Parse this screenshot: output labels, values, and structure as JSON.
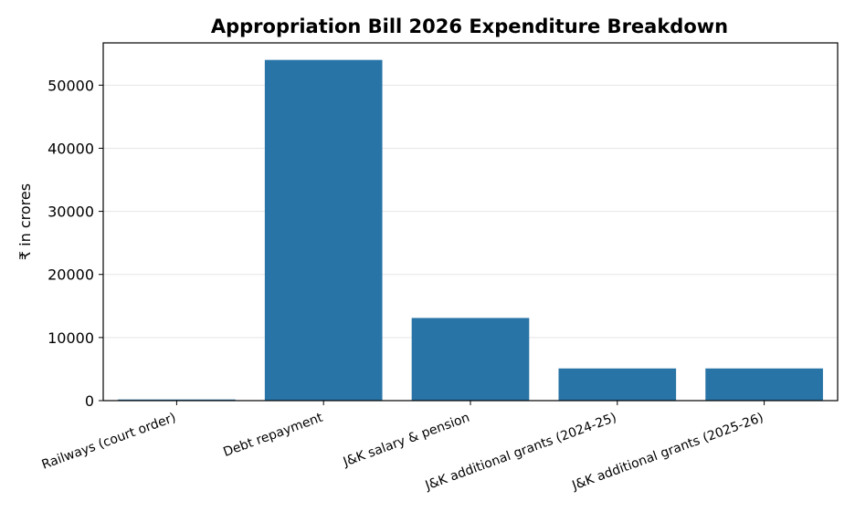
{
  "chart_data": {
    "type": "bar",
    "title": "Appropriation Bill 2026 Expenditure Breakdown",
    "xlabel": "",
    "ylabel": "₹ in crores",
    "categories": [
      "Railways (court order)",
      "Debt repayment",
      "J&K salary & pension",
      "J&K additional grants (2024-25)",
      "J&K additional grants (2025-26)"
    ],
    "values": [
      180,
      54000,
      13100,
      5100,
      5100
    ],
    "ylim": [
      0,
      56700
    ],
    "yticks": [
      0,
      10000,
      20000,
      30000,
      40000,
      50000
    ],
    "ytick_labels": [
      "0",
      "10000",
      "20000",
      "30000",
      "40000",
      "50000"
    ],
    "grid": true,
    "bar_color": "#2874a6"
  }
}
